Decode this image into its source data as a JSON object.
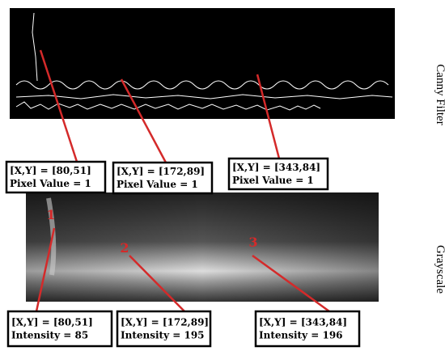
{
  "panels": [
    {
      "label": "Canny Filter",
      "callouts": [
        {
          "coords": "[X,Y] = [80,51]",
          "value": "Pixel Value = 1"
        },
        {
          "coords": "[X,Y] = [172,89]",
          "value": "Pixel Value = 1"
        },
        {
          "coords": "[X,Y] = [343,84]",
          "value": "Pixel Value = 1"
        }
      ]
    },
    {
      "label": "Grayscale",
      "callouts": [
        {
          "marker": "1",
          "coords": "[X,Y] = [80,51]",
          "value": "Intensity = 85"
        },
        {
          "marker": "2",
          "coords": "[X,Y] = [172,89]",
          "value": "Intensity = 195"
        },
        {
          "marker": "3",
          "coords": "[X,Y] = [343,84]",
          "value": "Intensity = 196"
        }
      ]
    }
  ]
}
